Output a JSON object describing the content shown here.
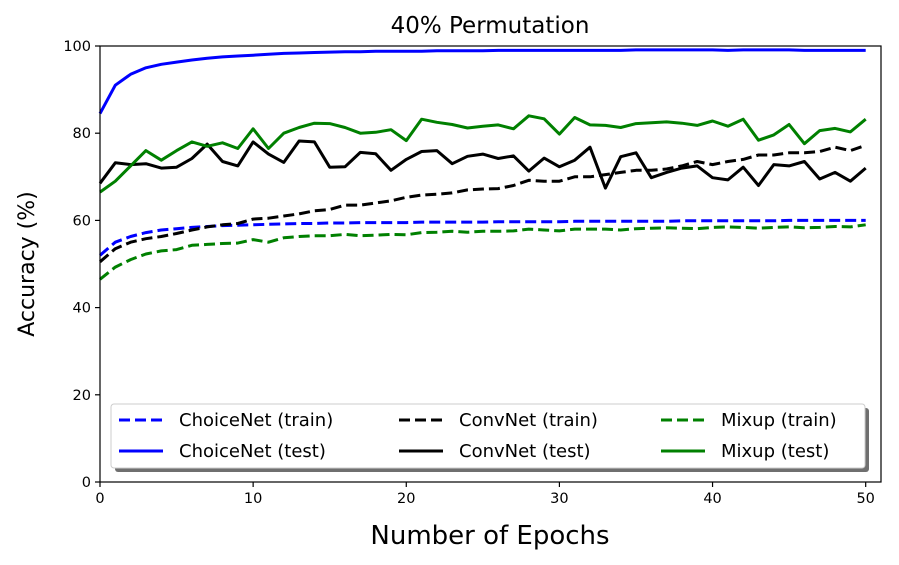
{
  "chart_data": {
    "type": "line",
    "title": "40% Permutation",
    "xlabel": "Number of Epochs",
    "ylabel": "Accuracy (%)",
    "xlim": [
      0,
      51
    ],
    "ylim": [
      0,
      100
    ],
    "xticks": [
      0,
      10,
      20,
      30,
      40,
      50
    ],
    "yticks": [
      0,
      20,
      40,
      60,
      80,
      100
    ],
    "grid": false,
    "legend": {
      "placement": "lower-center",
      "columns": 3
    },
    "series": [
      {
        "name": "ChoiceNet (train)",
        "color": "#0000ff",
        "style": "dashed",
        "x": [
          0,
          1,
          2,
          3,
          4,
          5,
          6,
          7,
          8,
          9,
          10,
          11,
          12,
          13,
          14,
          15,
          16,
          17,
          18,
          19,
          20,
          21,
          22,
          23,
          24,
          25,
          26,
          27,
          28,
          29,
          30,
          31,
          32,
          33,
          34,
          35,
          36,
          37,
          38,
          39,
          40,
          41,
          42,
          43,
          44,
          45,
          46,
          47,
          48,
          49,
          50
        ],
        "y": [
          52,
          55,
          56.3,
          57.2,
          57.8,
          58.1,
          58.4,
          58.6,
          58.8,
          58.9,
          59,
          59.1,
          59.2,
          59.3,
          59.3,
          59.4,
          59.4,
          59.5,
          59.5,
          59.5,
          59.5,
          59.6,
          59.6,
          59.6,
          59.6,
          59.6,
          59.7,
          59.7,
          59.7,
          59.7,
          59.7,
          59.8,
          59.8,
          59.8,
          59.8,
          59.8,
          59.8,
          59.8,
          59.9,
          59.9,
          59.9,
          59.9,
          59.9,
          59.9,
          59.9,
          60,
          60,
          60,
          60,
          60,
          60
        ]
      },
      {
        "name": "ChoiceNet (test)",
        "color": "#0000ff",
        "style": "solid",
        "x": [
          0,
          1,
          2,
          3,
          4,
          5,
          6,
          7,
          8,
          9,
          10,
          11,
          12,
          13,
          14,
          15,
          16,
          17,
          18,
          19,
          20,
          21,
          22,
          23,
          24,
          25,
          26,
          27,
          28,
          29,
          30,
          31,
          32,
          33,
          34,
          35,
          36,
          37,
          38,
          39,
          40,
          41,
          42,
          43,
          44,
          45,
          46,
          47,
          48,
          49,
          50
        ],
        "y": [
          84.5,
          91,
          93.5,
          95,
          95.8,
          96.3,
          96.8,
          97.2,
          97.5,
          97.7,
          97.9,
          98.1,
          98.3,
          98.4,
          98.5,
          98.6,
          98.7,
          98.7,
          98.8,
          98.8,
          98.8,
          98.8,
          98.9,
          98.9,
          98.9,
          98.9,
          99,
          99,
          99,
          99,
          99,
          99,
          99,
          99,
          99,
          99.1,
          99.1,
          99.1,
          99.1,
          99.1,
          99.1,
          99,
          99.1,
          99.1,
          99.1,
          99.1,
          99,
          99,
          99,
          99,
          99
        ]
      },
      {
        "name": "ConvNet (train)",
        "color": "#000000",
        "style": "dashed",
        "x": [
          0,
          1,
          2,
          3,
          4,
          5,
          6,
          7,
          8,
          9,
          10,
          11,
          12,
          13,
          14,
          15,
          16,
          17,
          18,
          19,
          20,
          21,
          22,
          23,
          24,
          25,
          26,
          27,
          28,
          29,
          30,
          31,
          32,
          33,
          34,
          35,
          36,
          37,
          38,
          39,
          40,
          41,
          42,
          43,
          44,
          45,
          46,
          47,
          48,
          49,
          50
        ],
        "y": [
          50.5,
          53.5,
          55,
          55.8,
          56.3,
          57,
          57.8,
          58.5,
          59,
          59.3,
          60.3,
          60.5,
          61,
          61.5,
          62.2,
          62.5,
          63.5,
          63.5,
          64,
          64.5,
          65.3,
          65.8,
          66,
          66.3,
          67,
          67.2,
          67.3,
          68,
          69.2,
          69,
          69,
          70,
          70,
          70.5,
          71,
          71.5,
          71.5,
          71.8,
          72.5,
          73.5,
          72.8,
          73.5,
          74,
          75,
          75,
          75.5,
          75.5,
          75.8,
          76.8,
          76,
          77.2
        ]
      },
      {
        "name": "ConvNet (test)",
        "color": "#000000",
        "style": "solid",
        "x": [
          0,
          1,
          2,
          3,
          4,
          5,
          6,
          7,
          8,
          9,
          10,
          11,
          12,
          13,
          14,
          15,
          16,
          17,
          18,
          19,
          20,
          21,
          22,
          23,
          24,
          25,
          26,
          27,
          28,
          29,
          30,
          31,
          32,
          33,
          34,
          35,
          36,
          37,
          38,
          39,
          40,
          41,
          42,
          43,
          44,
          45,
          46,
          47,
          48,
          49,
          50
        ],
        "y": [
          68.5,
          73.2,
          72.8,
          73,
          72,
          72.2,
          74.2,
          77.5,
          73.5,
          72.5,
          78,
          75.2,
          73.3,
          78.2,
          78,
          72.2,
          72.3,
          75.6,
          75.3,
          71.5,
          74,
          75.8,
          76,
          73,
          74.7,
          75.2,
          74.2,
          74.8,
          71.3,
          74.3,
          72.3,
          73.8,
          76.8,
          67.4,
          74.6,
          75.5,
          69.8,
          71,
          72,
          72.5,
          69.8,
          69.3,
          72.2,
          68,
          72.8,
          72.5,
          73.5,
          69.5,
          71,
          69,
          72
        ]
      },
      {
        "name": "Mixup (train)",
        "color": "#008000",
        "style": "dashed",
        "x": [
          0,
          1,
          2,
          3,
          4,
          5,
          6,
          7,
          8,
          9,
          10,
          11,
          12,
          13,
          14,
          15,
          16,
          17,
          18,
          19,
          20,
          21,
          22,
          23,
          24,
          25,
          26,
          27,
          28,
          29,
          30,
          31,
          32,
          33,
          34,
          35,
          36,
          37,
          38,
          39,
          40,
          41,
          42,
          43,
          44,
          45,
          46,
          47,
          48,
          49,
          50
        ],
        "y": [
          46.5,
          49.3,
          51,
          52.3,
          53,
          53.3,
          54.3,
          54.5,
          54.7,
          54.8,
          55.6,
          55,
          56,
          56.3,
          56.5,
          56.5,
          56.8,
          56.5,
          56.6,
          56.8,
          56.7,
          57.2,
          57.3,
          57.5,
          57.3,
          57.5,
          57.5,
          57.6,
          58,
          57.8,
          57.6,
          58,
          58,
          58,
          57.8,
          58.1,
          58.2,
          58.3,
          58.2,
          58.1,
          58.4,
          58.5,
          58.4,
          58.2,
          58.4,
          58.5,
          58.3,
          58.4,
          58.6,
          58.5,
          59
        ]
      },
      {
        "name": "Mixup (test)",
        "color": "#008000",
        "style": "solid",
        "x": [
          0,
          1,
          2,
          3,
          4,
          5,
          6,
          7,
          8,
          9,
          10,
          11,
          12,
          13,
          14,
          15,
          16,
          17,
          18,
          19,
          20,
          21,
          22,
          23,
          24,
          25,
          26,
          27,
          28,
          29,
          30,
          31,
          32,
          33,
          34,
          35,
          36,
          37,
          38,
          39,
          40,
          41,
          42,
          43,
          44,
          45,
          46,
          47,
          48,
          49,
          50
        ],
        "y": [
          66.5,
          69,
          72.5,
          76,
          73.8,
          76,
          78,
          77,
          77.8,
          76.5,
          81,
          76.5,
          80,
          81.3,
          82.3,
          82.2,
          81.3,
          80,
          80.2,
          80.8,
          78.3,
          83.2,
          82.5,
          82,
          81.2,
          81.6,
          81.9,
          81,
          84,
          83.3,
          79.8,
          83.6,
          81.9,
          81.8,
          81.3,
          82.2,
          82.4,
          82.6,
          82.3,
          81.8,
          82.8,
          81.6,
          83.2,
          78.4,
          79.6,
          82,
          77.6,
          80.6,
          81.1,
          80.3,
          83.2
        ]
      }
    ]
  }
}
